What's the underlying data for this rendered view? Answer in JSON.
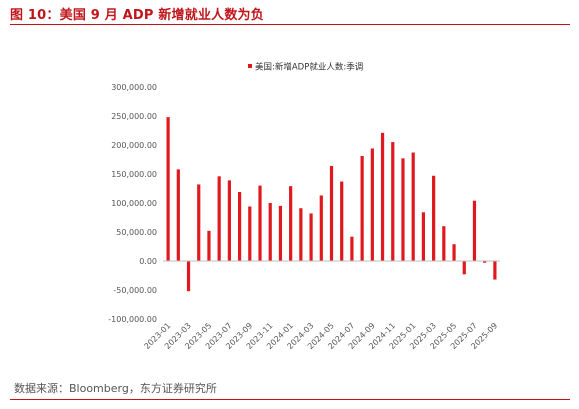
{
  "figure_title": "图 10：美国 9 月 ADP 新增就业人数为负",
  "source": "数据来源：Bloomberg，东方证券研究所",
  "colors": {
    "accent": "#c0161b",
    "bar": "#e0191e"
  },
  "chart_data": {
    "type": "bar",
    "series": [
      {
        "name": "美国:新增ADP就业人数:季调",
        "values": [
          248000,
          158000,
          -52000,
          132000,
          52000,
          146000,
          139000,
          119000,
          94000,
          130000,
          100000,
          95000,
          129000,
          91000,
          82000,
          113000,
          164000,
          137000,
          42000,
          181000,
          194000,
          221000,
          205000,
          177000,
          187000,
          84000,
          147000,
          60000,
          29000,
          -23000,
          104000,
          -3000,
          -32000
        ]
      }
    ],
    "categories": [
      "2023-01",
      "2023-02",
      "2023-03",
      "2023-04",
      "2023-05",
      "2023-06",
      "2023-07",
      "2023-08",
      "2023-09",
      "2023-10",
      "2023-11",
      "2023-12",
      "2024-01",
      "2024-02",
      "2024-03",
      "2024-04",
      "2024-05",
      "2024-06",
      "2024-07",
      "2024-08",
      "2024-09",
      "2024-10",
      "2024-11",
      "2024-12",
      "2025-01",
      "2025-02",
      "2025-03",
      "2025-04",
      "2025-05",
      "2025-06",
      "2025-07",
      "2025-08",
      "2025-09"
    ],
    "x_tick_labels": [
      "2023-01",
      "2023-03",
      "2023-05",
      "2023-07",
      "2023-09",
      "2023-11",
      "2024-01",
      "2024-03",
      "2024-05",
      "2024-07",
      "2024-09",
      "2024-11",
      "2025-01",
      "2025-03",
      "2025-05",
      "2025-07",
      "2025-09"
    ],
    "y_ticks": [
      300000,
      250000,
      200000,
      150000,
      100000,
      50000,
      0,
      -50000,
      -100000
    ],
    "y_tick_labels": [
      "300,000.00",
      "250,000.00",
      "200,000.00",
      "150,000.00",
      "100,000.00",
      "50,000.00",
      "0.00",
      "-50,000.00",
      "-100,000.00"
    ],
    "ylim": [
      -100000,
      300000
    ],
    "grid": false,
    "legend_position": "top-center"
  }
}
